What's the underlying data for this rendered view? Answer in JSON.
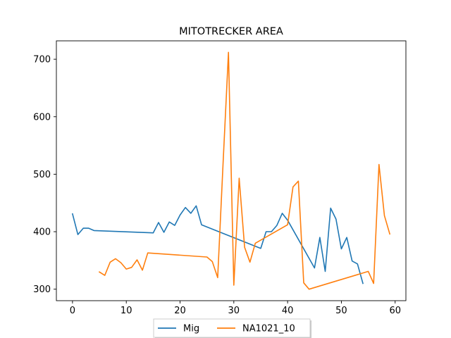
{
  "chart_data": {
    "type": "line",
    "title": "MITOTRECKER AREA",
    "xlabel": "",
    "ylabel": "",
    "xlim": [
      -3,
      62
    ],
    "ylim": [
      280,
      732
    ],
    "xticks": [
      0,
      10,
      20,
      30,
      40,
      50,
      60
    ],
    "yticks": [
      300,
      400,
      500,
      600,
      700
    ],
    "grid": false,
    "legend_position": "bottom-center",
    "series": [
      {
        "name": "Mig",
        "color": "#1f77b4",
        "x": [
          0,
          1,
          2,
          3,
          4,
          15,
          16,
          17,
          18,
          19,
          20,
          21,
          22,
          23,
          24,
          35,
          36,
          37,
          38,
          39,
          40,
          45,
          46,
          47,
          48,
          49,
          50,
          51,
          52,
          53,
          54
        ],
        "y": [
          431,
          395,
          406,
          406,
          402,
          398,
          416,
          399,
          417,
          411,
          429,
          442,
          432,
          445,
          412,
          371,
          400,
          400,
          411,
          432,
          420,
          337,
          390,
          331,
          441,
          422,
          370,
          390,
          349,
          344,
          310
        ]
      },
      {
        "name": "NA1021_10",
        "color": "#ff7f0e",
        "x": [
          5,
          6,
          7,
          8,
          9,
          10,
          11,
          12,
          13,
          14,
          25,
          26,
          27,
          28,
          29,
          30,
          31,
          32,
          33,
          34,
          40,
          41,
          42,
          43,
          44,
          55,
          56,
          57,
          58,
          59
        ],
        "y": [
          330,
          324,
          347,
          353,
          346,
          335,
          338,
          351,
          333,
          363,
          356,
          348,
          320,
          520,
          712,
          307,
          493,
          373,
          347,
          380,
          412,
          478,
          488,
          311,
          300,
          331,
          310,
          517,
          428,
          396
        ]
      }
    ]
  }
}
